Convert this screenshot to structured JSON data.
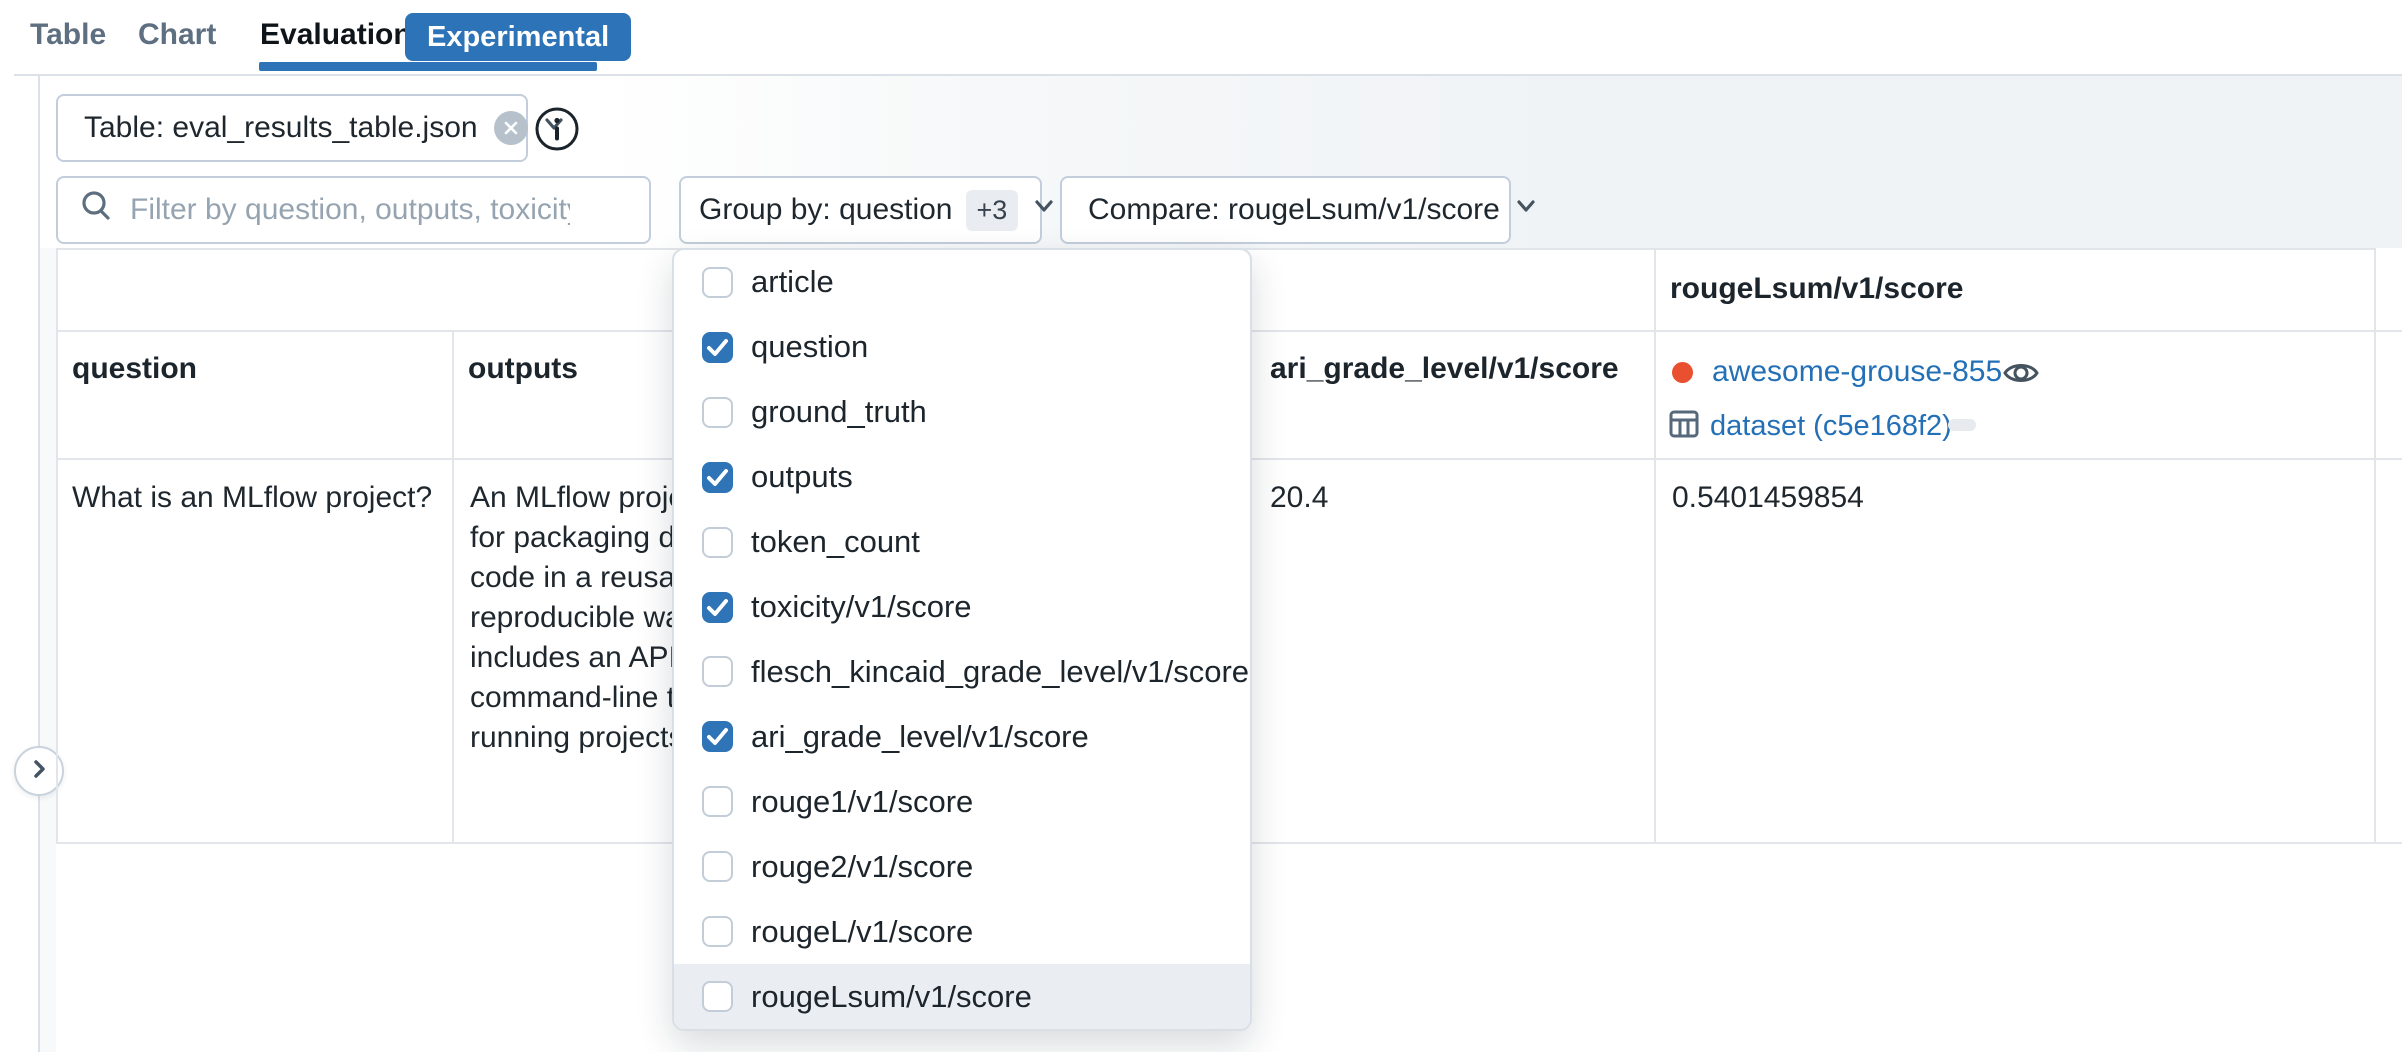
{
  "tabs": [
    {
      "label": "Table",
      "active": false
    },
    {
      "label": "Chart",
      "active": false
    },
    {
      "label": "Evaluation",
      "active": true
    }
  ],
  "experimental_badge": "Experimental",
  "toolbar": {
    "table_select_label": "Table: eval_results_table.json",
    "filter_placeholder": "Filter by question, outputs, toxicity/...",
    "group_by_label": "Group by: question",
    "group_by_extra": "+3",
    "compare_label": "Compare: rougeLsum/v1/score"
  },
  "dropdown": {
    "items": [
      {
        "label": "article",
        "checked": false,
        "highlighted": false
      },
      {
        "label": "question",
        "checked": true,
        "highlighted": false
      },
      {
        "label": "ground_truth",
        "checked": false,
        "highlighted": false
      },
      {
        "label": "outputs",
        "checked": true,
        "highlighted": false
      },
      {
        "label": "token_count",
        "checked": false,
        "highlighted": false
      },
      {
        "label": "toxicity/v1/score",
        "checked": true,
        "highlighted": false
      },
      {
        "label": "flesch_kincaid_grade_level/v1/score",
        "checked": false,
        "highlighted": false
      },
      {
        "label": "ari_grade_level/v1/score",
        "checked": true,
        "highlighted": false
      },
      {
        "label": "rouge1/v1/score",
        "checked": false,
        "highlighted": false
      },
      {
        "label": "rouge2/v1/score",
        "checked": false,
        "highlighted": false
      },
      {
        "label": "rougeL/v1/score",
        "checked": false,
        "highlighted": false
      },
      {
        "label": "rougeLsum/v1/score",
        "checked": false,
        "highlighted": true
      }
    ]
  },
  "table": {
    "compare_metric_header": "rougeLsum/v1/score",
    "column_headers": {
      "question": "question",
      "outputs": "outputs",
      "ari_grade_level": "ari_grade_level/v1/score"
    },
    "run": {
      "name": "awesome-grouse-855",
      "dataset_label": "dataset (c5e168f2)"
    },
    "row": {
      "question": "What is an MLflow project?",
      "outputs_text": "An MLflow proje\nfor packaging da\ncode in a reusab\nreproducible way\nincludes an API a\ncommand-line to\nrunning projects",
      "ari_grade_level_value": "20.4",
      "rougelsum_value": "0.5401459854"
    }
  },
  "colors": {
    "accent_blue": "#2c73b7",
    "link_blue": "#2470b6",
    "checkbox_blue": "#2e74b6",
    "run_dot_red": "#e8502f",
    "hover_row": "#eaedf2"
  }
}
